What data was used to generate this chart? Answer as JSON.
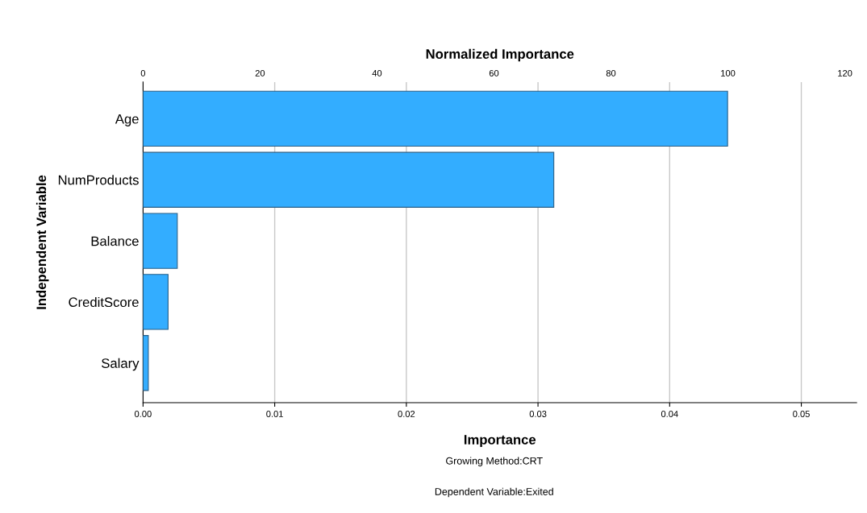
{
  "chart_data": {
    "type": "bar",
    "orientation": "horizontal",
    "xlabel": "Importance",
    "ylabel": "Independent Variable",
    "x2label": "Normalized Importance",
    "categories": [
      "Age",
      "NumProducts",
      "Balance",
      "CreditScore",
      "Salary"
    ],
    "series": [
      {
        "color": "#33adff",
        "values": [
          0.0444,
          0.0312,
          0.0026,
          0.0019,
          0.0004
        ]
      }
    ],
    "xlim": [
      0,
      0.0542
    ],
    "xticks": [
      {
        "value": 0,
        "label": "0.00"
      },
      {
        "value": 0.01,
        "label": "0.01"
      },
      {
        "value": 0.02,
        "label": "0.02"
      },
      {
        "value": 0.03,
        "label": "0.03"
      },
      {
        "value": 0.04,
        "label": "0.04"
      },
      {
        "value": 0.05,
        "label": "0.05"
      }
    ],
    "x2lim": [
      0,
      122
    ],
    "x2ticks": [
      0,
      20,
      40,
      60,
      80,
      100,
      120
    ],
    "grid": "x",
    "annotations": [
      "Growing Method:CRT",
      "Dependent Variable:Exited"
    ]
  }
}
